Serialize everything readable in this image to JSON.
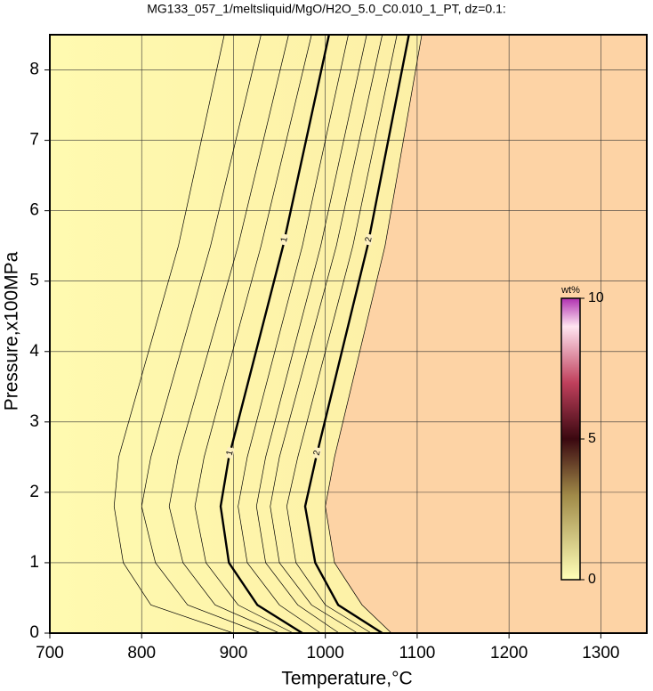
{
  "chart_data": {
    "type": "contour",
    "title": "MG133_057_1/meltsliquid/MgO/H2O_5.0_C0.010_1_PT, dz=0.1:",
    "x_label": "Temperature,°C",
    "y_label": "Pressure,x100MPa",
    "xlim": [
      700,
      1350
    ],
    "xticks": [
      700,
      800,
      900,
      1000,
      1100,
      1200,
      1300
    ],
    "ylim": [
      0,
      8.5
    ],
    "yticks": [
      0,
      1,
      2,
      3,
      4,
      5,
      6,
      7,
      8
    ],
    "grid": true,
    "line_color": "#000000",
    "low_color": "#fdf6a8",
    "high_color": "#fdd3a5",
    "contours": [
      {
        "level": 0.2,
        "x": [
          900,
          810,
          780,
          770,
          775,
          840,
          890
        ],
        "y": [
          0,
          0.4,
          1.0,
          1.8,
          2.5,
          5.5,
          8.5
        ]
      },
      {
        "level": 0.4,
        "x": [
          930,
          850,
          815,
          800,
          810,
          875,
          930
        ],
        "y": [
          0,
          0.4,
          1.0,
          1.8,
          2.5,
          5.5,
          8.5
        ]
      },
      {
        "level": 0.6,
        "x": [
          950,
          880,
          845,
          830,
          840,
          905,
          960
        ],
        "y": [
          0,
          0.4,
          1.0,
          1.8,
          2.5,
          5.5,
          8.5
        ]
      },
      {
        "level": 0.8,
        "x": [
          965,
          905,
          870,
          858,
          868,
          930,
          985
        ],
        "y": [
          0,
          0.4,
          1.0,
          1.8,
          2.5,
          5.5,
          8.5
        ]
      },
      {
        "level": 1,
        "x": [
          975,
          926,
          895,
          886,
          895,
          954,
          1004
        ],
        "y": [
          0,
          0.4,
          1.0,
          1.8,
          2.5,
          5.5,
          8.5
        ]
      },
      {
        "level": 1.2,
        "x": [
          995,
          950,
          915,
          905,
          915,
          975,
          1025
        ],
        "y": [
          0,
          0.4,
          1.0,
          1.8,
          2.5,
          5.5,
          8.5
        ]
      },
      {
        "level": 1.4,
        "x": [
          1015,
          970,
          935,
          925,
          935,
          995,
          1045
        ],
        "y": [
          0,
          0.4,
          1.0,
          1.8,
          2.5,
          5.5,
          8.5
        ]
      },
      {
        "level": 1.6,
        "x": [
          1035,
          985,
          950,
          940,
          950,
          1012,
          1062
        ],
        "y": [
          0,
          0.4,
          1.0,
          1.8,
          2.5,
          5.5,
          8.5
        ]
      },
      {
        "level": 1.8,
        "x": [
          1050,
          1000,
          968,
          958,
          970,
          1030,
          1078
        ],
        "y": [
          0,
          0.4,
          1.0,
          1.8,
          2.5,
          5.5,
          8.5
        ]
      },
      {
        "level": 2,
        "x": [
          1062,
          1014,
          989,
          978,
          990,
          1046,
          1091
        ],
        "y": [
          0,
          0.4,
          1.0,
          1.8,
          2.5,
          5.5,
          8.5
        ]
      },
      {
        "level": 2.2,
        "x": [
          1072,
          1040,
          1010,
          1000,
          1010,
          1065,
          1105
        ],
        "y": [
          0,
          0.4,
          1.0,
          1.8,
          2.5,
          5.5,
          8.5
        ]
      }
    ],
    "colorbar": {
      "label": "wt%",
      "lim": [
        0,
        10
      ],
      "ticks": [
        0,
        5,
        10
      ]
    }
  }
}
